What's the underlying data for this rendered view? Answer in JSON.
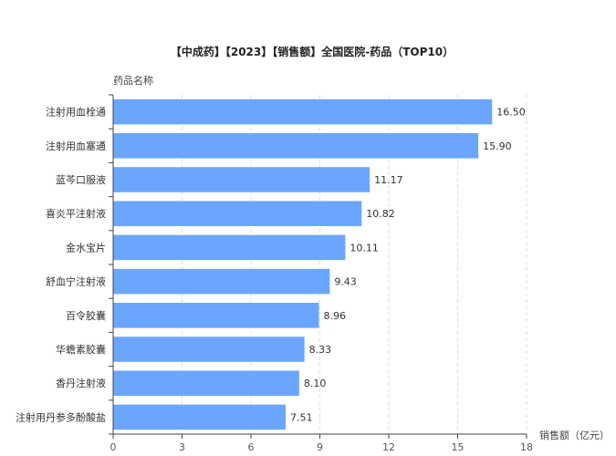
{
  "chart_data": {
    "type": "bar",
    "orientation": "horizontal",
    "title": "【中成药】【2023】【销售额】全国医院-药品（TOP10）",
    "ylabel": "药品名称",
    "xlabel": "销售额（亿元）",
    "categories": [
      "注射用血栓通",
      "注射用血塞通",
      "蓝芩口服液",
      "喜炎平注射液",
      "金水宝片",
      "舒血宁注射液",
      "百令胶囊",
      "华蟾素胶囊",
      "香丹注射液",
      "注射用丹参多酚酸盐"
    ],
    "values": [
      16.5,
      15.9,
      11.17,
      10.82,
      10.11,
      9.43,
      8.96,
      8.33,
      8.1,
      7.51
    ],
    "value_labels": [
      "16.50",
      "15.90",
      "11.17",
      "10.82",
      "10.11",
      "9.43",
      "8.96",
      "8.33",
      "8.10",
      "7.51"
    ],
    "xlim": [
      0,
      18
    ],
    "xticks": [
      0,
      3,
      6,
      9,
      12,
      15,
      18
    ],
    "grid": true,
    "bar_color": "#6aa6ff"
  }
}
